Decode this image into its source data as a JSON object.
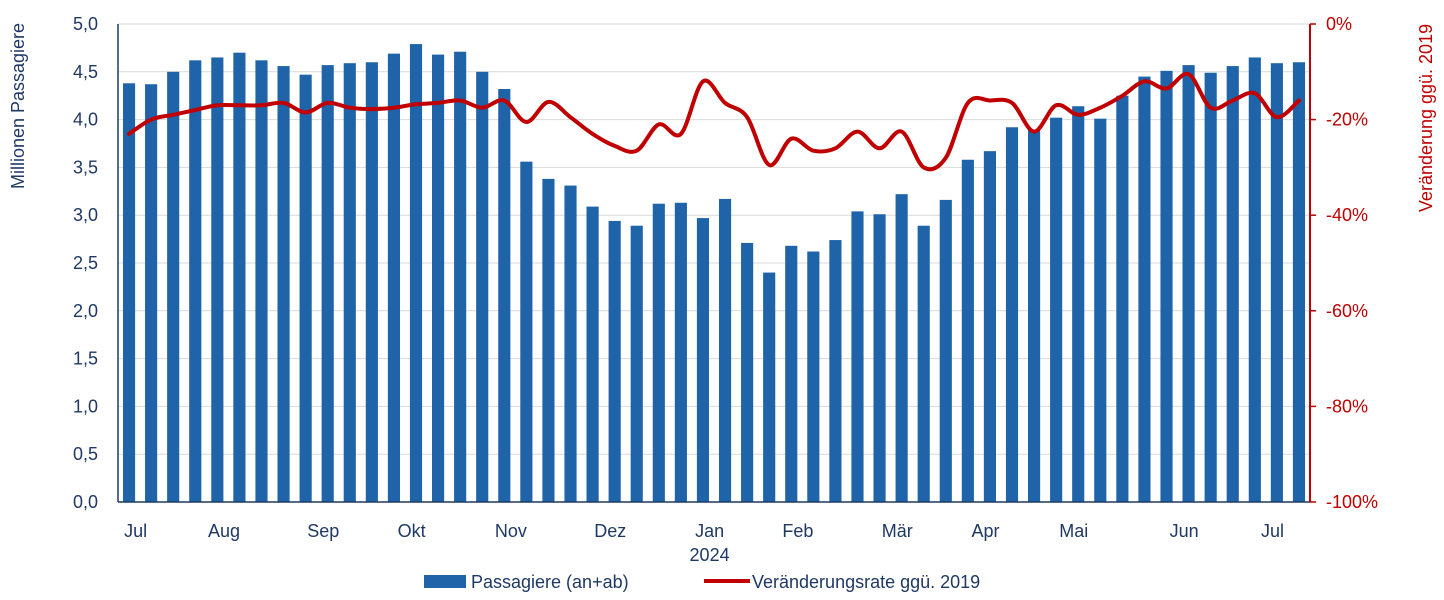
{
  "chart_data": {
    "type": "bar+line",
    "title": "",
    "ylabel": "Millionen Passagiere",
    "y2label": "Veränderung ggü. 2019",
    "ylim": [
      0,
      5
    ],
    "y2lim": [
      -100,
      0
    ],
    "yticks": [
      "0,0",
      "0,5",
      "1,0",
      "1,5",
      "2,0",
      "2,5",
      "3,0",
      "3,5",
      "4,0",
      "4,5",
      "5,0"
    ],
    "y2ticks": [
      "-100%",
      "-80%",
      "-60%",
      "-40%",
      "-20%",
      "0%"
    ],
    "grid": true,
    "legend_position": "bottom",
    "month_labels": [
      {
        "label": "Jul",
        "index": 0.8
      },
      {
        "label": "Aug",
        "index": 4.8
      },
      {
        "label": "Sep",
        "index": 9.3
      },
      {
        "label": "Okt",
        "index": 13.3
      },
      {
        "label": "Nov",
        "index": 17.8
      },
      {
        "label": "Dez",
        "index": 22.3
      },
      {
        "label": "Jan",
        "index": 26.8
      },
      {
        "label": "Feb",
        "index": 30.8
      },
      {
        "label": "Mär",
        "index": 35.3
      },
      {
        "label": "Apr",
        "index": 39.3
      },
      {
        "label": "Mai",
        "index": 43.3
      },
      {
        "label": "Jun",
        "index": 48.3
      },
      {
        "label": "Jul",
        "index": 52.3
      }
    ],
    "year_label": {
      "label": "2024",
      "index": 26.8
    },
    "series": [
      {
        "name": "Passagiere (an+ab)",
        "type": "bar",
        "color": "#1f64a8",
        "values": [
          4.38,
          4.37,
          4.5,
          4.62,
          4.65,
          4.7,
          4.62,
          4.56,
          4.47,
          4.57,
          4.59,
          4.6,
          4.69,
          4.79,
          4.68,
          4.71,
          4.5,
          4.32,
          3.56,
          3.38,
          3.31,
          3.09,
          2.94,
          2.89,
          3.12,
          3.13,
          2.97,
          3.17,
          2.71,
          2.4,
          2.68,
          2.62,
          2.74,
          3.04,
          3.01,
          3.22,
          2.89,
          3.16,
          3.58,
          3.67,
          3.92,
          3.89,
          4.02,
          4.14,
          4.01,
          4.25,
          4.45,
          4.51,
          4.57,
          4.49,
          4.56,
          4.65,
          4.59,
          4.6
        ]
      },
      {
        "name": "Veränderungsrate ggü. 2019",
        "type": "line",
        "color": "#c00000",
        "values": [
          -23,
          -20,
          -19,
          -18,
          -17,
          -17,
          -17,
          -16.5,
          -18.5,
          -16.5,
          -17.5,
          -17.8,
          -17.5,
          -16.8,
          -16.5,
          -16,
          -17.5,
          -16,
          -20.5,
          -16.3,
          -19.5,
          -23,
          -25.5,
          -26.5,
          -21,
          -23,
          -12,
          -16.5,
          -19.5,
          -29.5,
          -24,
          -26.5,
          -26,
          -22.5,
          -26,
          -22.5,
          -30,
          -28,
          -16.5,
          -16,
          -16.5,
          -22.5,
          -17,
          -19,
          -17.5,
          -15,
          -12,
          -13.5,
          -10.5,
          -17.5,
          -16,
          -14.5,
          -19.5,
          -16
        ]
      }
    ]
  }
}
